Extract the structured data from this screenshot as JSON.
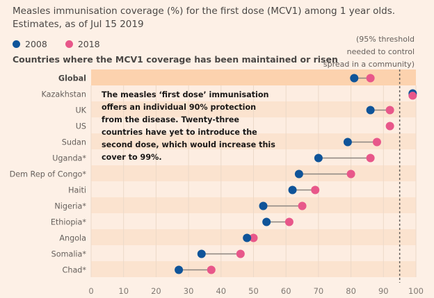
{
  "header": {
    "title_line1": "Measles immunisation coverage (%) for the first dose (MCV1) among 1 year olds.",
    "title_line2": "Estimates, as of Jul 15 2019",
    "subhead": "Countries where the MCV1 coverage has been maintained or risen"
  },
  "legend": [
    {
      "label": "2008",
      "color": "#0f5499"
    },
    {
      "label": "2018",
      "color": "#e8578a"
    }
  ],
  "threshold_note": [
    "(95% threshold",
    "needed to control",
    "spread in a community)"
  ],
  "annotation": "The measles ‘first dose’ immunisation offers an individual 90% protection from the disease. Twenty-three countries have yet to introduce the second dose, which would increase this cover to 99%.",
  "colors": {
    "y2008": "#0f5499",
    "y2018": "#e8578a",
    "band_dark": "#fbe3cf",
    "band_light": "#fdede1",
    "global_band": "#fcd2ae",
    "connector": "#8c8580",
    "threshold_line": "#66605c",
    "grid": "#ecd9c8"
  },
  "chart_data": {
    "type": "dumbbell",
    "title": "Measles immunisation coverage (%) for the first dose (MCV1) among 1 year olds.",
    "subtitle": "Estimates, as of Jul 15 2019",
    "xlabel": "",
    "ylabel": "",
    "xlim": [
      0,
      100
    ],
    "xticks": [
      0,
      10,
      20,
      30,
      40,
      50,
      60,
      70,
      80,
      90,
      100
    ],
    "grid": true,
    "legend_position": "top-left",
    "threshold": 95,
    "categories": [
      "Global",
      "Kazakhstan",
      "UK",
      "US",
      "Sudan",
      "Uganda*",
      "Dem Rep  of Congo*",
      "Haiti",
      "Nigeria*",
      "Ethiopia*",
      "Angola",
      "Somalia*",
      "Chad*"
    ],
    "series": [
      {
        "name": "2008",
        "values": [
          81,
          99,
          86,
          92,
          79,
          70,
          64,
          62,
          53,
          54,
          48,
          34,
          27
        ]
      },
      {
        "name": "2018",
        "values": [
          86,
          99,
          92,
          92,
          88,
          86,
          80,
          69,
          65,
          61,
          50,
          46,
          37
        ]
      }
    ]
  }
}
